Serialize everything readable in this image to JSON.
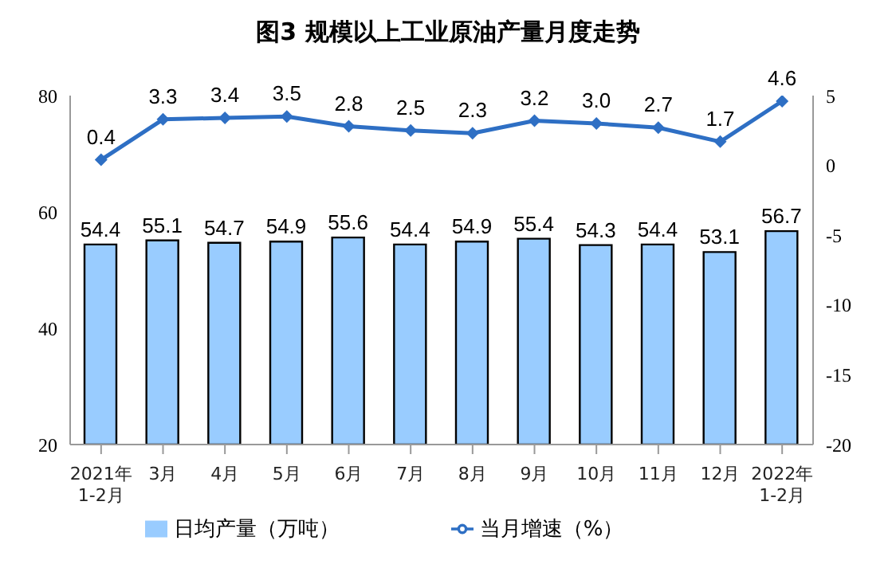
{
  "chart_data": {
    "type": "bar",
    "title": "图3  规模以上工业原油产量月度走势",
    "categories": [
      "2021年\n1-2月",
      "3月",
      "4月",
      "5月",
      "6月",
      "7月",
      "8月",
      "9月",
      "10月",
      "11月",
      "12月",
      "2022年\n1-2月"
    ],
    "series": [
      {
        "name": "日均产量（万吨）",
        "color": "#99ccff",
        "values": [
          54.4,
          55.1,
          54.7,
          54.9,
          55.6,
          54.4,
          54.9,
          55.4,
          54.3,
          54.4,
          53.1,
          56.7
        ],
        "value_labels": [
          "54.4",
          "55.1",
          "54.7",
          "54.9",
          "55.6",
          "54.4",
          "54.9",
          "55.4",
          "54.3",
          "54.4",
          "53.1",
          "56.7"
        ]
      },
      {
        "name": "当月增速（%）",
        "type": "line",
        "axis": "y2",
        "color": "#2e6fc4",
        "marker": "diamond",
        "values": [
          0.4,
          3.3,
          3.4,
          3.5,
          2.8,
          2.5,
          2.3,
          3.2,
          3.0,
          2.7,
          1.7,
          4.6
        ],
        "value_labels": [
          "0.4",
          "3.3",
          "3.4",
          "3.5",
          "2.8",
          "2.5",
          "2.3",
          "3.2",
          "3.0",
          "2.7",
          "1.7",
          "4.6"
        ]
      }
    ],
    "ylim": [
      20,
      80
    ],
    "yticks": [
      20,
      40,
      60,
      80
    ],
    "y2lim": [
      -20,
      5
    ],
    "y2ticks": [
      -20,
      -15,
      -10,
      -5,
      0,
      5
    ],
    "grid": false,
    "legend": "bottom"
  }
}
